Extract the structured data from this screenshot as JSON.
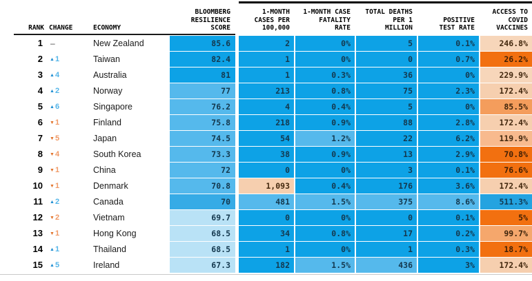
{
  "header": {
    "rank": "RANK",
    "change": "CHANGE",
    "economy": "ECONOMY",
    "score": "BLOOMBERG\nRESILIENCE\nSCORE",
    "cases": "1-MONTH\nCASES PER\n100,000",
    "fatality": "1-MONTH CASE\nFATALITY\nRATE",
    "deaths": "TOTAL DEATHS\nPER 1\nMILLION",
    "positive": "POSITIVE\nTEST RATE",
    "vaccines": "ACCESS TO\nCOVID\nVACCINES"
  },
  "icons": {
    "up": "▲",
    "down": "▼"
  },
  "colors": {
    "up_arrow": "#1e8ed2",
    "up_value": "#55b5e8",
    "down_arrow": "#e2732b",
    "down_value": "#f09a67",
    "header_line": "#1a1a1a",
    "top_bar": "#000000",
    "bottom_line": "#c9c9c9"
  },
  "palette": {
    "B1": {
      "bg": "#0da2e6",
      "fg": "#14384e"
    },
    "B2": {
      "bg": "#55b9ec",
      "fg": "#14384e"
    },
    "B3": {
      "bg": "#b9e2f6",
      "fg": "#14384e"
    },
    "SC": {
      "bg": "#36abe6",
      "fg": "#14384e"
    },
    "VB": {
      "bg": "#24a3e0",
      "fg": "#123a52"
    },
    "P1": {
      "bg": "#f7d6ba",
      "fg": "#44290f"
    },
    "P2": {
      "bg": "#f6cfaf",
      "fg": "#44290f"
    },
    "P3": {
      "bg": "#f8ba8e",
      "fg": "#44290f"
    },
    "P4": {
      "bg": "#f5a76c",
      "fg": "#3f250c"
    },
    "P5": {
      "bg": "#f49d5c",
      "fg": "#3f250c"
    },
    "O6": {
      "bg": "#f27010",
      "fg": "#401f05"
    }
  },
  "chart_data": {
    "type": "table",
    "columns": [
      "RANK",
      "CHANGE",
      "ECONOMY",
      "BLOOMBERG RESILIENCE SCORE",
      "1-MONTH CASES PER 100,000",
      "1-MONTH CASE FATALITY RATE",
      "TOTAL DEATHS PER 1 MILLION",
      "POSITIVE TEST RATE",
      "ACCESS TO COVID VACCINES"
    ],
    "rows": [
      {
        "rank": "1",
        "change_dir": "none",
        "change": "–",
        "economy": "New Zealand",
        "score": {
          "v": "85.6",
          "bg": "B1"
        },
        "cases": {
          "v": "2",
          "bg": "B1"
        },
        "fatality": {
          "v": "0%",
          "bg": "B1"
        },
        "deaths": {
          "v": "5",
          "bg": "B1"
        },
        "positive": {
          "v": "0.1%",
          "bg": "B1"
        },
        "vaccines": {
          "v": "246.8%",
          "bg": "P1"
        }
      },
      {
        "rank": "2",
        "change_dir": "up",
        "change": "1",
        "economy": "Taiwan",
        "score": {
          "v": "82.4",
          "bg": "B1"
        },
        "cases": {
          "v": "1",
          "bg": "B1"
        },
        "fatality": {
          "v": "0%",
          "bg": "B1"
        },
        "deaths": {
          "v": "0",
          "bg": "B1"
        },
        "positive": {
          "v": "0.7%",
          "bg": "B1"
        },
        "vaccines": {
          "v": "26.2%",
          "bg": "O6"
        }
      },
      {
        "rank": "3",
        "change_dir": "up",
        "change": "4",
        "economy": "Australia",
        "score": {
          "v": "81",
          "bg": "B1"
        },
        "cases": {
          "v": "1",
          "bg": "B1"
        },
        "fatality": {
          "v": "0.3%",
          "bg": "B1"
        },
        "deaths": {
          "v": "36",
          "bg": "B1"
        },
        "positive": {
          "v": "0%",
          "bg": "B1"
        },
        "vaccines": {
          "v": "229.9%",
          "bg": "P1"
        }
      },
      {
        "rank": "4",
        "change_dir": "up",
        "change": "2",
        "economy": "Norway",
        "score": {
          "v": "77",
          "bg": "B2"
        },
        "cases": {
          "v": "213",
          "bg": "B1"
        },
        "fatality": {
          "v": "0.8%",
          "bg": "B1"
        },
        "deaths": {
          "v": "75",
          "bg": "B1"
        },
        "positive": {
          "v": "2.3%",
          "bg": "B1"
        },
        "vaccines": {
          "v": "172.4%",
          "bg": "P2"
        }
      },
      {
        "rank": "5",
        "change_dir": "up",
        "change": "6",
        "economy": "Singapore",
        "score": {
          "v": "76.2",
          "bg": "B2"
        },
        "cases": {
          "v": "4",
          "bg": "B1"
        },
        "fatality": {
          "v": "0.4%",
          "bg": "B1"
        },
        "deaths": {
          "v": "5",
          "bg": "B1"
        },
        "positive": {
          "v": "0%",
          "bg": "B1"
        },
        "vaccines": {
          "v": "85.5%",
          "bg": "P5"
        }
      },
      {
        "rank": "6",
        "change_dir": "down",
        "change": "1",
        "economy": "Finland",
        "score": {
          "v": "75.8",
          "bg": "B2"
        },
        "cases": {
          "v": "218",
          "bg": "B1"
        },
        "fatality": {
          "v": "0.9%",
          "bg": "B1"
        },
        "deaths": {
          "v": "88",
          "bg": "B1"
        },
        "positive": {
          "v": "2.8%",
          "bg": "B1"
        },
        "vaccines": {
          "v": "172.4%",
          "bg": "P2"
        }
      },
      {
        "rank": "7",
        "change_dir": "down",
        "change": "5",
        "economy": "Japan",
        "score": {
          "v": "74.5",
          "bg": "B2"
        },
        "cases": {
          "v": "54",
          "bg": "B1"
        },
        "fatality": {
          "v": "1.2%",
          "bg": "B2"
        },
        "deaths": {
          "v": "22",
          "bg": "B1"
        },
        "positive": {
          "v": "6.2%",
          "bg": "B1"
        },
        "vaccines": {
          "v": "119.9%",
          "bg": "P3"
        }
      },
      {
        "rank": "8",
        "change_dir": "down",
        "change": "4",
        "economy": "South Korea",
        "score": {
          "v": "73.3",
          "bg": "B2"
        },
        "cases": {
          "v": "38",
          "bg": "B1"
        },
        "fatality": {
          "v": "0.9%",
          "bg": "B1"
        },
        "deaths": {
          "v": "13",
          "bg": "B1"
        },
        "positive": {
          "v": "2.9%",
          "bg": "B1"
        },
        "vaccines": {
          "v": "70.8%",
          "bg": "O6"
        }
      },
      {
        "rank": "9",
        "change_dir": "down",
        "change": "1",
        "economy": "China",
        "score": {
          "v": "72",
          "bg": "B2"
        },
        "cases": {
          "v": "0",
          "bg": "B1"
        },
        "fatality": {
          "v": "0%",
          "bg": "B1"
        },
        "deaths": {
          "v": "3",
          "bg": "B1"
        },
        "positive": {
          "v": "0.1%",
          "bg": "B1"
        },
        "vaccines": {
          "v": "76.6%",
          "bg": "O6"
        }
      },
      {
        "rank": "10",
        "change_dir": "down",
        "change": "1",
        "economy": "Denmark",
        "score": {
          "v": "70.8",
          "bg": "B2"
        },
        "cases": {
          "v": "1,093",
          "bg": "P2"
        },
        "fatality": {
          "v": "0.4%",
          "bg": "B1"
        },
        "deaths": {
          "v": "176",
          "bg": "B1"
        },
        "positive": {
          "v": "3.6%",
          "bg": "B1"
        },
        "vaccines": {
          "v": "172.4%",
          "bg": "P2"
        }
      },
      {
        "rank": "11",
        "change_dir": "up",
        "change": "2",
        "economy": "Canada",
        "score": {
          "v": "70",
          "bg": "SC"
        },
        "cases": {
          "v": "481",
          "bg": "B2"
        },
        "fatality": {
          "v": "1.5%",
          "bg": "B2"
        },
        "deaths": {
          "v": "375",
          "bg": "B2"
        },
        "positive": {
          "v": "8.6%",
          "bg": "B2"
        },
        "vaccines": {
          "v": "511.3%",
          "bg": "VB"
        }
      },
      {
        "rank": "12",
        "change_dir": "down",
        "change": "2",
        "economy": "Vietnam",
        "score": {
          "v": "69.7",
          "bg": "B3"
        },
        "cases": {
          "v": "0",
          "bg": "B1"
        },
        "fatality": {
          "v": "0%",
          "bg": "B1"
        },
        "deaths": {
          "v": "0",
          "bg": "B1"
        },
        "positive": {
          "v": "0.1%",
          "bg": "B1"
        },
        "vaccines": {
          "v": "5%",
          "bg": "O6"
        }
      },
      {
        "rank": "13",
        "change_dir": "down",
        "change": "1",
        "economy": "Hong Kong",
        "score": {
          "v": "68.5",
          "bg": "B3"
        },
        "cases": {
          "v": "34",
          "bg": "B1"
        },
        "fatality": {
          "v": "0.8%",
          "bg": "B1"
        },
        "deaths": {
          "v": "17",
          "bg": "B1"
        },
        "positive": {
          "v": "0.2%",
          "bg": "B1"
        },
        "vaccines": {
          "v": "99.7%",
          "bg": "P4"
        }
      },
      {
        "rank": "14",
        "change_dir": "up",
        "change": "1",
        "economy": "Thailand",
        "score": {
          "v": "68.5",
          "bg": "B3"
        },
        "cases": {
          "v": "1",
          "bg": "B1"
        },
        "fatality": {
          "v": "0%",
          "bg": "B1"
        },
        "deaths": {
          "v": "1",
          "bg": "B1"
        },
        "positive": {
          "v": "0.3%",
          "bg": "B1"
        },
        "vaccines": {
          "v": "18.7%",
          "bg": "O6"
        }
      },
      {
        "rank": "15",
        "change_dir": "up",
        "change": "5",
        "economy": "Ireland",
        "score": {
          "v": "67.3",
          "bg": "B3"
        },
        "cases": {
          "v": "182",
          "bg": "B1"
        },
        "fatality": {
          "v": "1.5%",
          "bg": "B2"
        },
        "deaths": {
          "v": "436",
          "bg": "B2"
        },
        "positive": {
          "v": "3%",
          "bg": "B1"
        },
        "vaccines": {
          "v": "172.4%",
          "bg": "P2"
        }
      }
    ]
  }
}
